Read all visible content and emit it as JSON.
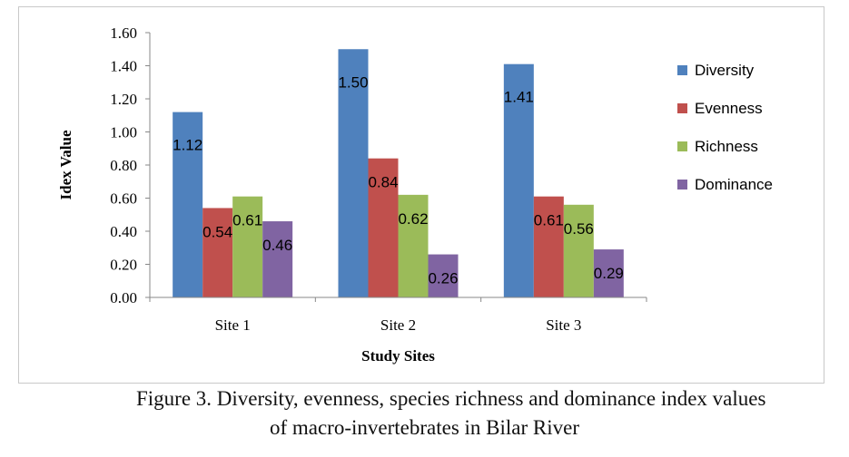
{
  "chart_data": {
    "type": "bar",
    "categories": [
      "Site 1",
      "Site 2",
      "Site 3"
    ],
    "series": [
      {
        "name": "Diversity",
        "values": [
          1.12,
          1.5,
          1.41
        ],
        "labels": [
          "1.12",
          "1.50",
          "1.41"
        ],
        "color": "#4f81bd"
      },
      {
        "name": "Evenness",
        "values": [
          0.54,
          0.84,
          0.61
        ],
        "labels": [
          "0.54",
          "0.84",
          "0.61"
        ],
        "color": "#c0504d"
      },
      {
        "name": "Richness",
        "values": [
          0.61,
          0.62,
          0.56
        ],
        "labels": [
          "0.61",
          "0.62",
          "0.56"
        ],
        "color": "#9bbb59"
      },
      {
        "name": "Dominance",
        "values": [
          0.46,
          0.26,
          0.29
        ],
        "labels": [
          "0.46",
          "0.26",
          "0.29"
        ],
        "color": "#8064a2"
      }
    ],
    "ylim": [
      0,
      1.6
    ],
    "yticks": [
      "0.00",
      "0.20",
      "0.40",
      "0.60",
      "0.80",
      "1.00",
      "1.20",
      "1.40",
      "1.60"
    ],
    "xlabel": "Study Sites",
    "ylabel": "Idex Value",
    "legend_position": "right",
    "grid": false
  },
  "caption": {
    "line1": "Figure 3. Diversity, evenness, species richness and dominance index values",
    "line2": "of macro-invertebrates in Bilar River"
  }
}
